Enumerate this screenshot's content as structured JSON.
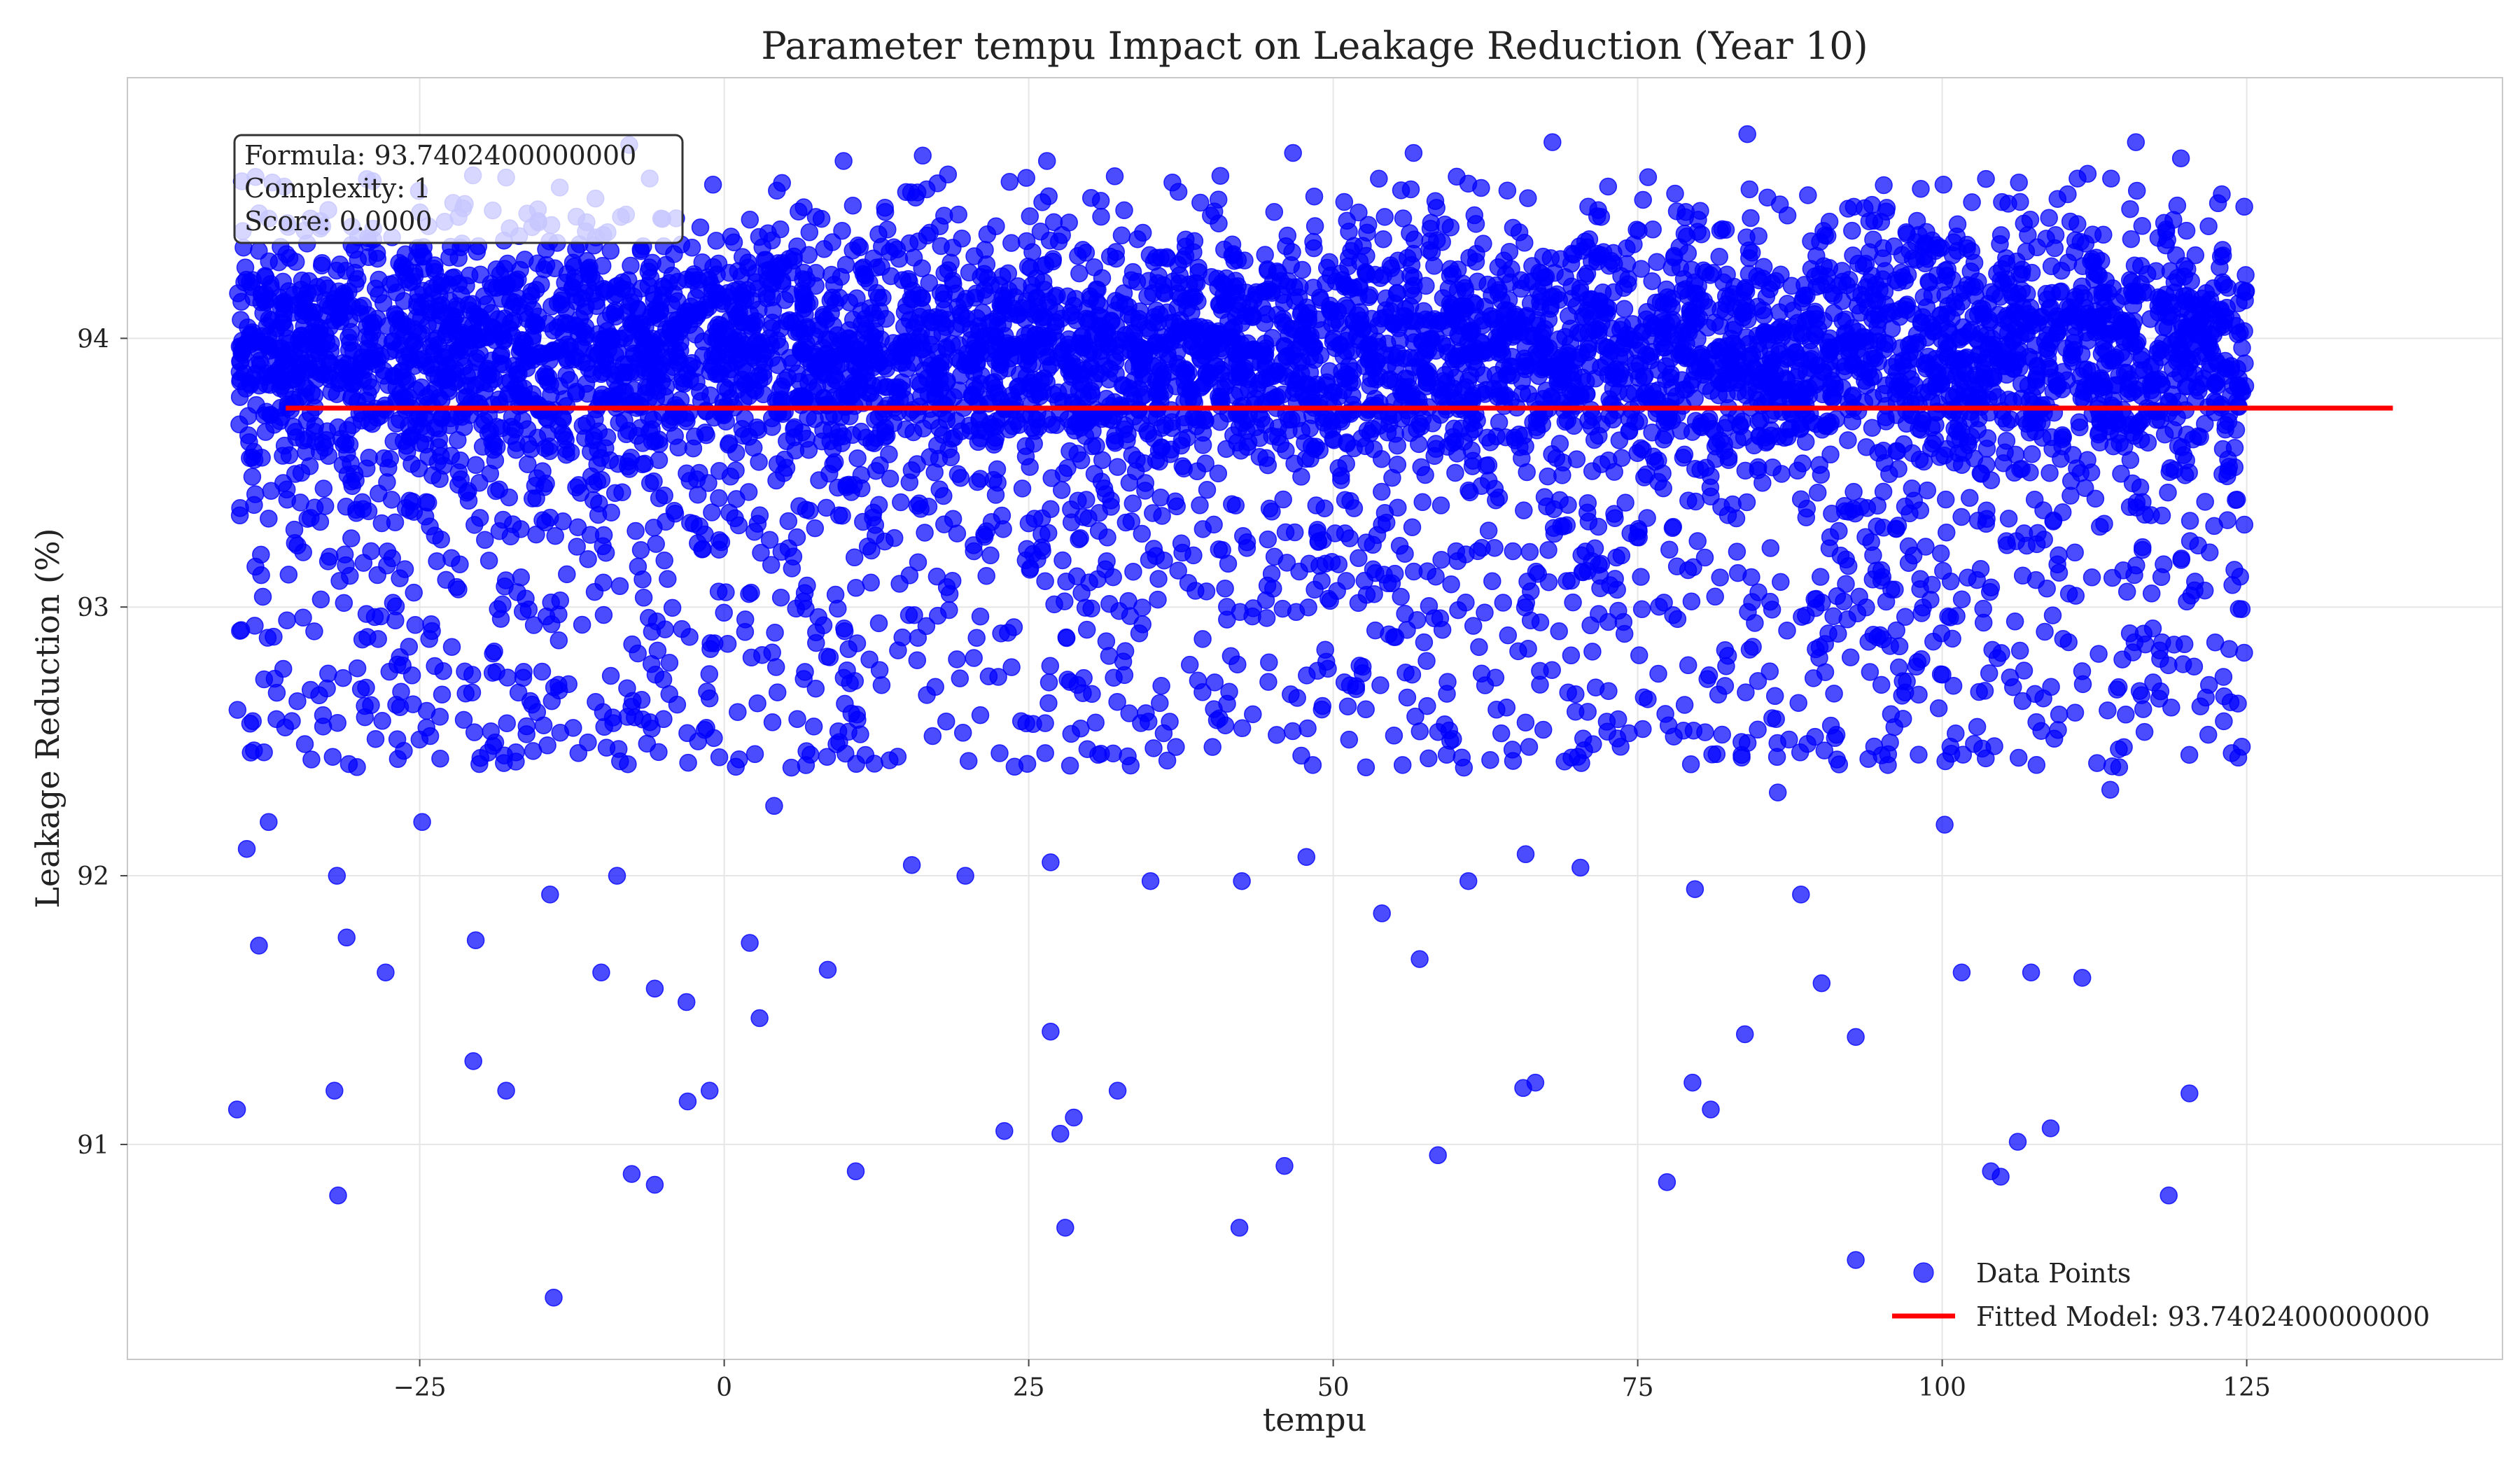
{
  "chart_data": {
    "type": "scatter",
    "title": "Parameter tempu Impact on Leakage Reduction (Year 10)",
    "xlabel": "tempu",
    "ylabel": "Leakage Reduction (%)",
    "xlim": [
      -49,
      146
    ],
    "ylim": [
      90.2,
      94.97
    ],
    "xticks": [
      -25,
      0,
      25,
      50,
      75,
      100,
      125
    ],
    "yticks": [
      91,
      92,
      93,
      94
    ],
    "grid": true,
    "legend_position": "bottom-right",
    "info_box": {
      "lines": [
        "Formula: 93.7402400000000",
        "Complexity: 1",
        "Score: 0.0000"
      ]
    },
    "scatter_series": {
      "name": "Data Points",
      "color": "#0000ff",
      "x_range": [
        -40,
        125
      ],
      "main_band": [
        93.3,
        94.5
      ],
      "points": [
        [
          -40,
          91.13
        ],
        [
          -31.7,
          90.81
        ],
        [
          -14,
          90.43
        ],
        [
          -7.6,
          90.89
        ],
        [
          -5.7,
          90.85
        ],
        [
          10.8,
          90.9
        ],
        [
          28,
          90.69
        ],
        [
          42.3,
          90.69
        ],
        [
          46,
          90.92
        ],
        [
          58.6,
          90.96
        ],
        [
          77.4,
          90.86
        ],
        [
          92.9,
          90.57
        ],
        [
          104,
          90.9
        ],
        [
          104.8,
          90.88
        ],
        [
          118.6,
          90.81
        ],
        [
          -32,
          91.2
        ],
        [
          -20.6,
          91.31
        ],
        [
          -17.9,
          91.2
        ],
        [
          -3,
          91.16
        ],
        [
          -1.2,
          91.2
        ],
        [
          23,
          91.05
        ],
        [
          27.6,
          91.04
        ],
        [
          32.3,
          91.2
        ],
        [
          65.6,
          91.21
        ],
        [
          66.6,
          91.23
        ],
        [
          79.5,
          91.23
        ],
        [
          81,
          91.13
        ],
        [
          106.2,
          91.01
        ],
        [
          108.9,
          91.06
        ],
        [
          120.3,
          91.19
        ],
        [
          -38.2,
          91.74
        ],
        [
          -31,
          91.77
        ],
        [
          -27.8,
          91.64
        ],
        [
          -20.4,
          91.76
        ],
        [
          -10.1,
          91.64
        ],
        [
          -5.7,
          91.58
        ],
        [
          -3.1,
          91.53
        ],
        [
          2.1,
          91.75
        ],
        [
          2.9,
          91.47
        ],
        [
          8.5,
          91.65
        ],
        [
          26.8,
          91.42
        ],
        [
          28.7,
          91.1
        ],
        [
          54,
          91.86
        ],
        [
          57.1,
          91.69
        ],
        [
          83.8,
          91.41
        ],
        [
          90.1,
          91.6
        ],
        [
          92.9,
          91.4
        ],
        [
          101.6,
          91.64
        ],
        [
          107.3,
          91.64
        ],
        [
          111.5,
          91.62
        ],
        [
          -39.2,
          92.1
        ],
        [
          -37.4,
          92.2
        ],
        [
          -31.8,
          92
        ],
        [
          -24.8,
          92.2
        ],
        [
          -14.3,
          91.93
        ],
        [
          -8.8,
          92
        ],
        [
          10.9,
          92.6
        ],
        [
          15.4,
          92.04
        ],
        [
          19.8,
          92
        ],
        [
          26.8,
          92.05
        ],
        [
          35,
          91.98
        ],
        [
          42.5,
          91.98
        ],
        [
          47.8,
          92.07
        ],
        [
          61.1,
          91.98
        ],
        [
          65.8,
          92.08
        ],
        [
          70.3,
          92.03
        ],
        [
          79.7,
          91.95
        ],
        [
          88.4,
          91.93
        ],
        [
          100.2,
          92.19
        ],
        [
          113.8,
          92.32
        ],
        [
          -36.2,
          92.77
        ],
        [
          -29.4,
          92.7
        ],
        [
          -21.3,
          92.76
        ],
        [
          -12.4,
          92.55
        ],
        [
          -1.2,
          92.66
        ],
        [
          4.1,
          92.26
        ],
        [
          9.9,
          92.64
        ],
        [
          22.5,
          92.74
        ],
        [
          30.7,
          92.45
        ],
        [
          40.2,
          92.62
        ],
        [
          51.2,
          92.63
        ],
        [
          63.8,
          92.53
        ],
        [
          73.6,
          92.48
        ],
        [
          86.5,
          92.31
        ],
        [
          96.7,
          92.67
        ],
        [
          109.2,
          92.51
        ],
        [
          116.5,
          92.62
        ],
        [
          121.9,
          92.71
        ],
        [
          124.6,
          92.48
        ],
        [
          -27,
          92.95
        ],
        [
          -18.2,
          93.01
        ],
        [
          -6.2,
          92.96
        ],
        [
          6.8,
          93.08
        ],
        [
          15.6,
          92.97
        ],
        [
          27.1,
          93.01
        ],
        [
          44.6,
          93.08
        ],
        [
          61.5,
          92.93
        ],
        [
          77.9,
          92.97
        ],
        [
          95.4,
          93.02
        ],
        [
          110.4,
          93.05
        ],
        [
          -38.5,
          93.42
        ],
        [
          -30.2,
          93.35
        ],
        [
          -16.7,
          93.29
        ],
        [
          -2.5,
          93.31
        ],
        [
          12.7,
          93.38
        ],
        [
          26.1,
          93.33
        ],
        [
          39.3,
          93.29
        ],
        [
          55.3,
          93.37
        ],
        [
          68.9,
          93.3
        ],
        [
          83.1,
          93.33
        ],
        [
          98.2,
          93.36
        ],
        [
          113.3,
          93.31
        ],
        [
          124.2,
          93.4
        ],
        [
          -37.1,
          94.58
        ],
        [
          -21.3,
          94.5
        ],
        [
          -7.8,
          94.72
        ],
        [
          9.8,
          94.66
        ],
        [
          16.3,
          94.68
        ],
        [
          26.5,
          94.66
        ],
        [
          46.7,
          94.69
        ],
        [
          56.6,
          94.69
        ],
        [
          68,
          94.73
        ],
        [
          84,
          94.76
        ],
        [
          106.3,
          94.58
        ],
        [
          115.9,
          94.73
        ],
        [
          119.6,
          94.67
        ],
        [
          -15.3,
          94.48
        ],
        [
          36.8,
          94.58
        ],
        [
          64.3,
          94.55
        ],
        [
          95.2,
          94.57
        ],
        [
          124.8,
          94.49
        ]
      ]
    },
    "fitted_line": {
      "name": "Fitted Model: 93.7402400000000",
      "color": "#ff0000",
      "x": [
        -36,
        137
      ],
      "y": [
        93.74024,
        93.74024
      ]
    }
  },
  "legend": {
    "scatter_label": "Data Points",
    "line_label": "Fitted Model: 93.7402400000000"
  }
}
